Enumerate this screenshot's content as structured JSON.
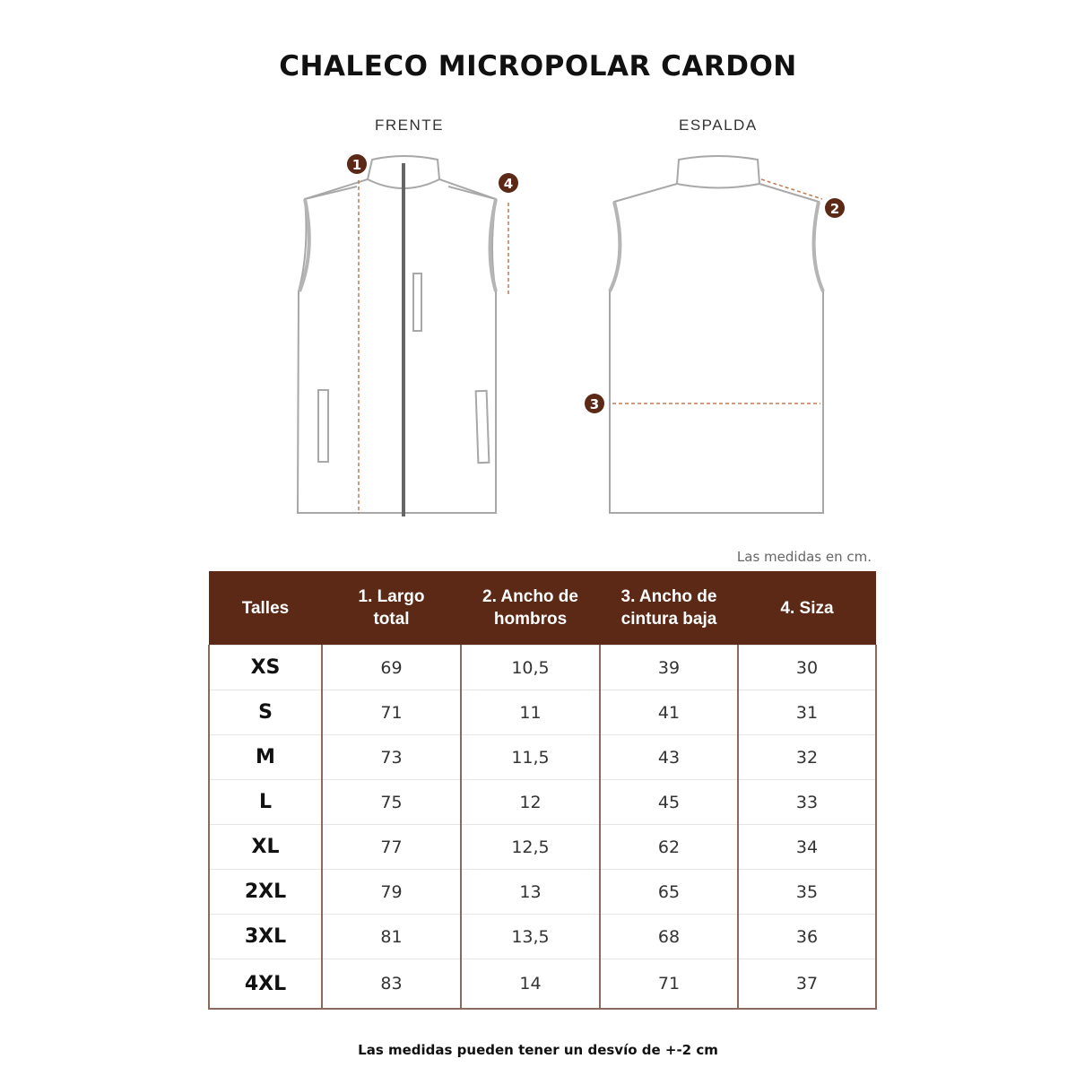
{
  "title": "CHALECO MICROPOLAR CARDON",
  "views": {
    "front": "FRENTE",
    "back": "ESPALDA"
  },
  "markers": [
    "1",
    "2",
    "3",
    "4"
  ],
  "colors": {
    "accent": "#5b2915",
    "measure_line": "#c07b55",
    "garment_outline": "#a8a8a8"
  },
  "units_note": "Las medidas en cm.",
  "table": {
    "headers": [
      "Talles",
      "1. Largo total",
      "2. Ancho de hombros",
      "3. Ancho de cintura baja",
      "4. Siza"
    ],
    "rows": [
      [
        "XS",
        "69",
        "10,5",
        "39",
        "30"
      ],
      [
        "S",
        "71",
        "11",
        "41",
        "31"
      ],
      [
        "M",
        "73",
        "11,5",
        "43",
        "32"
      ],
      [
        "L",
        "75",
        "12",
        "45",
        "33"
      ],
      [
        "XL",
        "77",
        "12,5",
        "62",
        "34"
      ],
      [
        "2XL",
        "79",
        "13",
        "65",
        "35"
      ],
      [
        "3XL",
        "81",
        "13,5",
        "68",
        "36"
      ],
      [
        "4XL",
        "83",
        "14",
        "71",
        "37"
      ]
    ]
  },
  "footnote": "Las medidas pueden tener un desvío de +-2 cm"
}
